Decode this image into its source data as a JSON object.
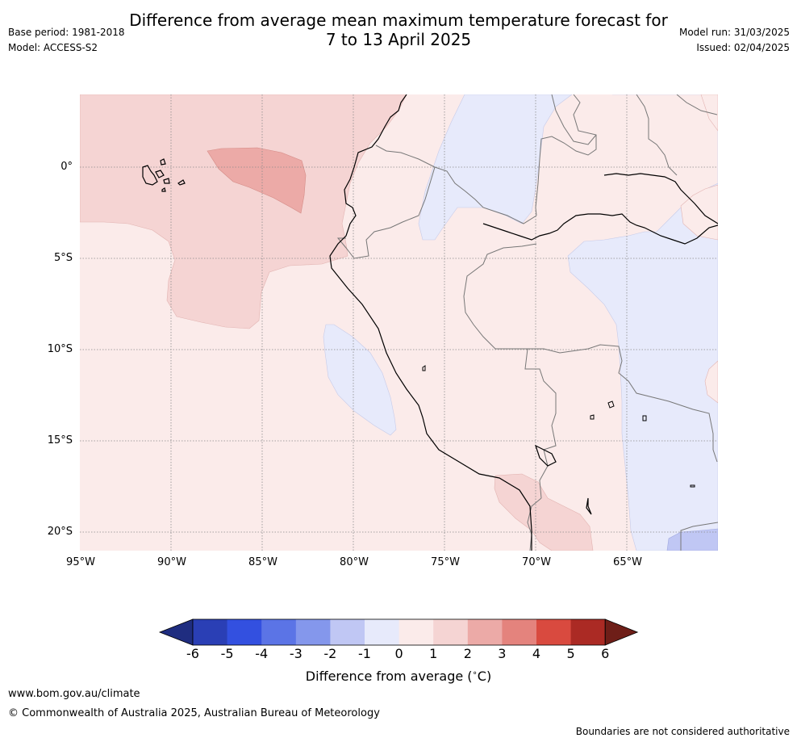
{
  "header": {
    "title_line1": "Difference from average mean maximum temperature forecast for",
    "title_line2": "7 to 13 April 2025",
    "base_period": "Base period: 1981-2018",
    "model": "Model: ACCESS-S2",
    "model_run": "Model run: 31/03/2025",
    "issued": "Issued: 02/04/2025"
  },
  "map": {
    "region": "Western South America (Peru, Ecuador, Colombia, Brazil, Bolivia, Chile)",
    "lon_range": [
      -95,
      -59.8
    ],
    "lat_range": [
      -21,
      4
    ],
    "lat_ticks": [
      "0°",
      "5°S",
      "10°S",
      "15°S",
      "20°S"
    ],
    "lon_ticks": [
      "95°W",
      "90°W",
      "85°W",
      "80°W",
      "75°W",
      "70°W",
      "65°W"
    ],
    "graticule": "dotted"
  },
  "colorbar": {
    "label": "Difference from average (°C)",
    "label_prefix": "Difference from average (",
    "label_deg": "∘",
    "label_suffix": "C)",
    "ticks": [
      "-6",
      "-5",
      "-4",
      "-3",
      "-2",
      "-1",
      "0",
      "1",
      "2",
      "3",
      "4",
      "5",
      "6"
    ],
    "colors": [
      "#1f2d80",
      "#2a3fb5",
      "#3350e0",
      "#5b74e6",
      "#8497ec",
      "#c0c7f4",
      "#e7eafb",
      "#fbebea",
      "#f5d4d3",
      "#ecaaa7",
      "#e4837d",
      "#d94a3f",
      "#ab2a24",
      "#6e1e18"
    ]
  },
  "footer": {
    "url": "www.bom.gov.au/climate",
    "copyright": "© Commonwealth of Australia 2025, Australian Bureau of Meteorology",
    "disclaimer": "Boundaries are not considered authoritative"
  }
}
